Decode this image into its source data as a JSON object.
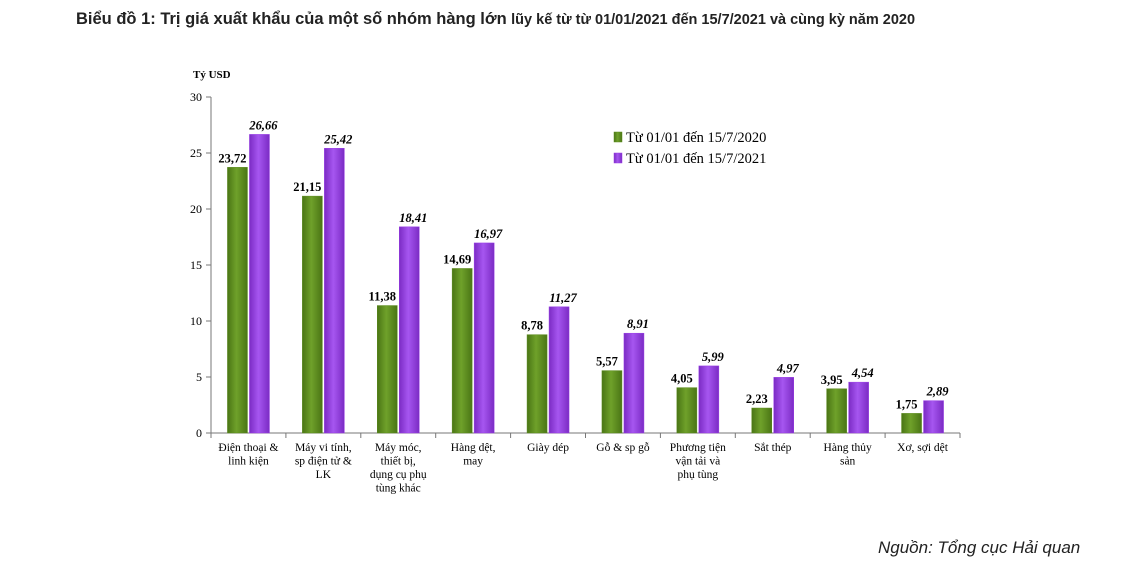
{
  "title": {
    "main": "Biểu đồ 1: Trị giá xuất khẩu của một số nhóm hàng lớn",
    "sub": "lũy kế từ từ 01/01/2021 đến 15/7/2021 và cùng kỳ năm 2020"
  },
  "source": "Nguồn: Tổng cục Hải quan",
  "chart_data": {
    "type": "bar",
    "ylabel": "Tỷ USD",
    "xlabel": "",
    "ylim": [
      0,
      30
    ],
    "yticks": [
      0,
      5,
      10,
      15,
      20,
      25,
      30
    ],
    "grid": false,
    "legend_position": "top-right",
    "categories": [
      [
        "Điện thoại &",
        "linh kiện"
      ],
      [
        "Máy vi tính,",
        "sp điện tử &",
        "LK"
      ],
      [
        "Máy móc,",
        "thiết bị,",
        "dụng cụ phụ",
        "tùng khác"
      ],
      [
        "Hàng dệt,",
        "may"
      ],
      [
        "Giày dép"
      ],
      [
        "Gỗ & sp gỗ"
      ],
      [
        "Phương tiện",
        "vận tải và",
        "phụ tùng"
      ],
      [
        "Sắt thép"
      ],
      [
        "Hàng thủy",
        "sản"
      ],
      [
        "Xơ, sợi dệt"
      ]
    ],
    "series": [
      {
        "name": "Từ 01/01 đến 15/7/2020",
        "color": "#5b8a1e",
        "values": [
          23.72,
          21.15,
          11.38,
          14.69,
          8.78,
          5.57,
          4.05,
          2.23,
          3.95,
          1.75
        ],
        "labels": [
          "23,72",
          "21,15",
          "11,38",
          "14,69",
          "8,78",
          "5,57",
          "4,05",
          "2,23",
          "3,95",
          "1,75"
        ]
      },
      {
        "name": "Từ 01/01 đến 15/7/2021",
        "color": "#9a3fe6",
        "values": [
          26.66,
          25.42,
          18.41,
          16.97,
          11.27,
          8.91,
          5.99,
          4.97,
          4.54,
          2.89
        ],
        "labels": [
          "26,66",
          "25,42",
          "18,41",
          "16,97",
          "11,27",
          "8,91",
          "5,99",
          "4,97",
          "4,54",
          "2,89"
        ]
      }
    ]
  }
}
